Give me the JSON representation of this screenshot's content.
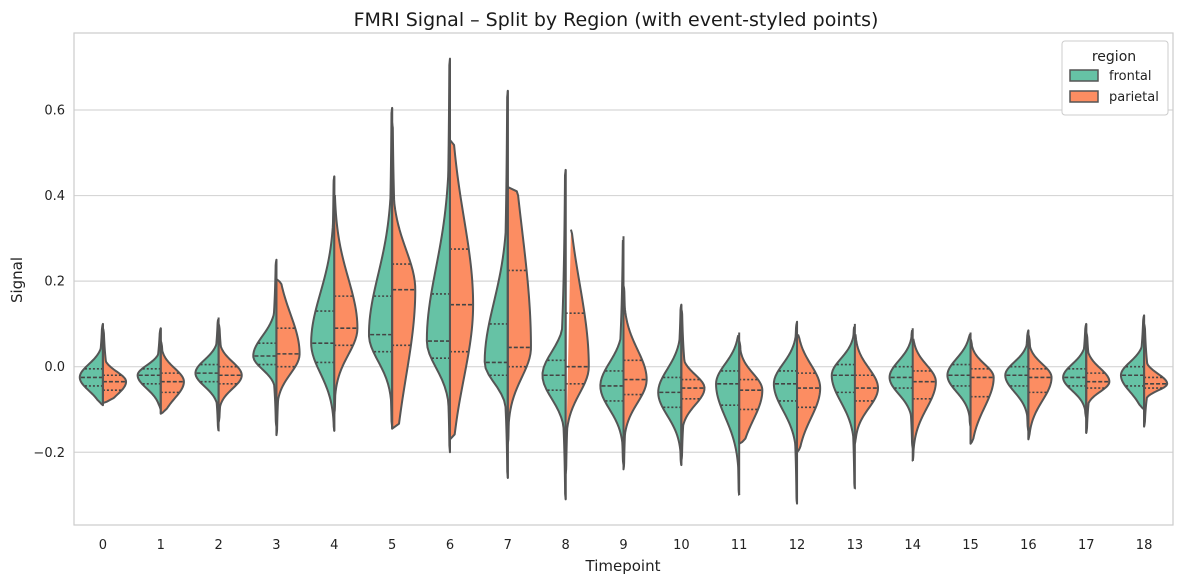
{
  "chart_data": {
    "type": "violin",
    "title": "FMRI Signal – Split by Region (with event-styled points)",
    "xlabel": "Timepoint",
    "ylabel": "Signal",
    "ylim": [
      -0.37,
      0.78
    ],
    "yticks": [
      -0.2,
      0.0,
      0.2,
      0.4,
      0.6
    ],
    "ytick_labels": [
      "−0.2",
      "0.0",
      "0.2",
      "0.4",
      "0.6"
    ],
    "categories": [
      "0",
      "1",
      "2",
      "3",
      "4",
      "5",
      "6",
      "7",
      "8",
      "9",
      "10",
      "11",
      "12",
      "13",
      "14",
      "15",
      "16",
      "17",
      "18"
    ],
    "grid": true,
    "legend": {
      "title": "region",
      "position": "top-right"
    },
    "series": [
      {
        "name": "frontal",
        "color": "#66c2a5",
        "stats": [
          {
            "min": -0.09,
            "q1": -0.045,
            "median": -0.025,
            "q3": -0.005,
            "max": 0.1
          },
          {
            "min": -0.1,
            "q1": -0.04,
            "median": -0.02,
            "q3": -0.005,
            "max": 0.09
          },
          {
            "min": -0.15,
            "q1": -0.035,
            "median": -0.015,
            "q3": 0.005,
            "max": 0.115
          },
          {
            "min": -0.14,
            "q1": 0.005,
            "median": 0.025,
            "q3": 0.055,
            "max": 0.25
          },
          {
            "min": -0.15,
            "q1": 0.01,
            "median": 0.055,
            "q3": 0.13,
            "max": 0.445
          },
          {
            "min": -0.14,
            "q1": 0.035,
            "median": 0.075,
            "q3": 0.165,
            "max": 0.605
          },
          {
            "min": -0.2,
            "q1": 0.02,
            "median": 0.06,
            "q3": 0.17,
            "max": 0.72
          },
          {
            "min": -0.26,
            "q1": -0.02,
            "median": 0.01,
            "q3": 0.1,
            "max": 0.645
          },
          {
            "min": -0.31,
            "q1": -0.055,
            "median": -0.02,
            "q3": 0.015,
            "max": 0.46
          },
          {
            "min": -0.23,
            "q1": -0.08,
            "median": -0.045,
            "q3": -0.01,
            "max": 0.305
          },
          {
            "min": -0.23,
            "q1": -0.095,
            "median": -0.06,
            "q3": -0.025,
            "max": 0.145
          },
          {
            "min": -0.3,
            "q1": -0.09,
            "median": -0.04,
            "q3": -0.01,
            "max": 0.08
          },
          {
            "min": -0.32,
            "q1": -0.08,
            "median": -0.04,
            "q3": -0.01,
            "max": 0.105
          },
          {
            "min": -0.285,
            "q1": -0.06,
            "median": -0.02,
            "q3": 0.005,
            "max": 0.1
          },
          {
            "min": -0.19,
            "q1": -0.05,
            "median": -0.025,
            "q3": 0.0,
            "max": 0.09
          },
          {
            "min": -0.14,
            "q1": -0.045,
            "median": -0.02,
            "q3": 0.005,
            "max": 0.08
          },
          {
            "min": -0.15,
            "q1": -0.045,
            "median": -0.02,
            "q3": 0.0,
            "max": 0.085
          },
          {
            "min": -0.12,
            "q1": -0.045,
            "median": -0.025,
            "q3": -0.005,
            "max": 0.1
          },
          {
            "min": -0.1,
            "q1": -0.045,
            "median": -0.02,
            "q3": 0.0,
            "max": 0.12
          }
        ]
      },
      {
        "name": "parietal",
        "color": "#fc8d62",
        "stats": [
          {
            "min": -0.085,
            "q1": -0.055,
            "median": -0.035,
            "q3": -0.02,
            "max": 0.09
          },
          {
            "min": -0.11,
            "q1": -0.06,
            "median": -0.035,
            "q3": -0.015,
            "max": 0.06
          },
          {
            "min": -0.13,
            "q1": -0.04,
            "median": -0.02,
            "q3": 0.0,
            "max": 0.1
          },
          {
            "min": -0.16,
            "q1": 0.0,
            "median": 0.03,
            "q3": 0.09,
            "max": 0.205
          },
          {
            "min": -0.11,
            "q1": 0.05,
            "median": 0.09,
            "q3": 0.165,
            "max": 0.41
          },
          {
            "min": -0.145,
            "q1": 0.05,
            "median": 0.18,
            "q3": 0.24,
            "max": 0.57
          },
          {
            "min": -0.17,
            "q1": 0.035,
            "median": 0.145,
            "q3": 0.275,
            "max": 0.53
          },
          {
            "min": -0.18,
            "q1": 0.0,
            "median": 0.045,
            "q3": 0.225,
            "max": 0.42
          },
          {
            "min": -0.25,
            "q1": -0.04,
            "median": 0.0,
            "q3": 0.125,
            "max": 0.33
          },
          {
            "min": -0.24,
            "q1": -0.065,
            "median": -0.03,
            "q3": 0.015,
            "max": 0.19
          },
          {
            "min": -0.22,
            "q1": -0.075,
            "median": -0.05,
            "q3": -0.03,
            "max": 0.135
          },
          {
            "min": -0.18,
            "q1": -0.1,
            "median": -0.055,
            "q3": -0.03,
            "max": 0.06
          },
          {
            "min": -0.2,
            "q1": -0.095,
            "median": -0.05,
            "q3": -0.015,
            "max": 0.08
          },
          {
            "min": -0.18,
            "q1": -0.08,
            "median": -0.05,
            "q3": -0.02,
            "max": 0.08
          },
          {
            "min": -0.22,
            "q1": -0.075,
            "median": -0.035,
            "q3": -0.01,
            "max": 0.07
          },
          {
            "min": -0.18,
            "q1": -0.07,
            "median": -0.025,
            "q3": -0.005,
            "max": 0.065
          },
          {
            "min": -0.17,
            "q1": -0.06,
            "median": -0.025,
            "q3": -0.005,
            "max": 0.075
          },
          {
            "min": -0.155,
            "q1": -0.05,
            "median": -0.035,
            "q3": -0.015,
            "max": 0.08
          },
          {
            "min": -0.14,
            "q1": -0.05,
            "median": -0.04,
            "q3": -0.025,
            "max": 0.1
          }
        ]
      }
    ]
  }
}
